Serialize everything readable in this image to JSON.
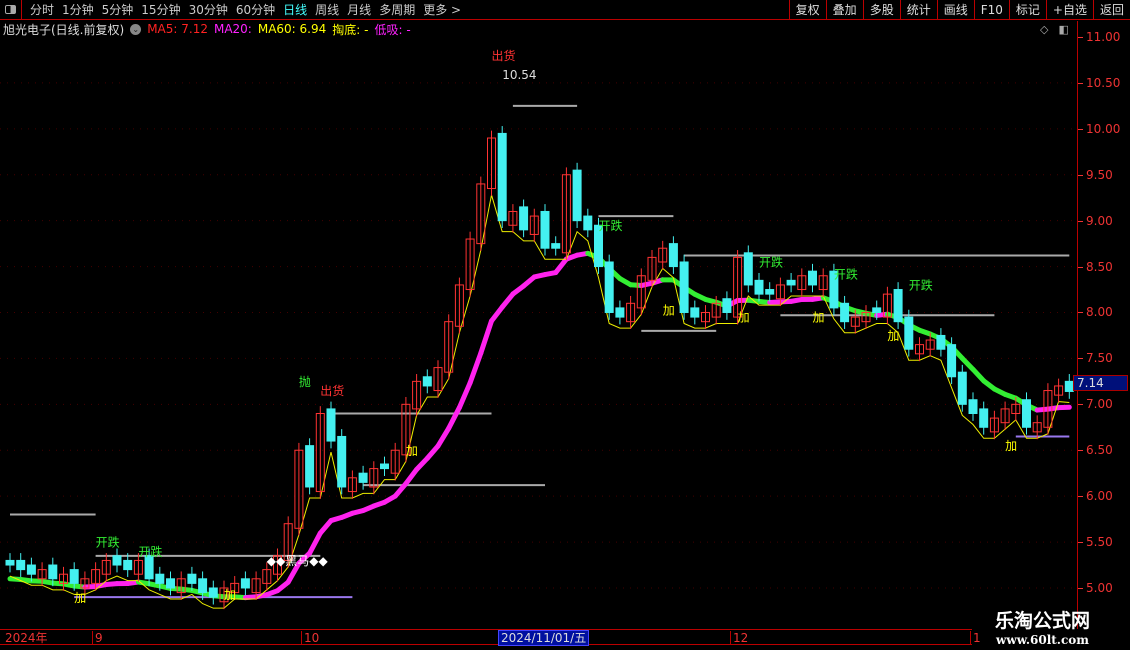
{
  "toolbar": {
    "periods": [
      "分时",
      "1分钟",
      "5分钟",
      "15分钟",
      "30分钟",
      "60分钟",
      "日线",
      "周线",
      "月线",
      "多周期",
      "更多 >"
    ],
    "active": "日线",
    "right_buttons": [
      "复权",
      "叠加",
      "多股",
      "统计",
      "画线",
      "F10",
      "标记",
      "+自选",
      "返回"
    ]
  },
  "info": {
    "title": "旭光电子(日线.前复权)",
    "ma5": "MA5: 7.12",
    "ma20": "MA20:",
    "ma60": "MA60: 6.94",
    "tao": "掏底: -",
    "dixi": "低吸: -"
  },
  "colors": {
    "up": "#ff3333",
    "down": "#44f0f0",
    "ma5": "#ff2020",
    "ma20": "#ff22ff",
    "ma60": "#ffff00",
    "trend_up": "#ff22ee",
    "trend_down": "#33ee33"
  },
  "axis": {
    "ticks": [
      "11.00",
      "10.50",
      "10.00",
      "9.50",
      "9.00",
      "8.50",
      "8.00",
      "7.50",
      "7.00",
      "6.50",
      "6.00",
      "5.50",
      "5.00"
    ],
    "current_price": "7.14"
  },
  "datebar": {
    "labels": [
      "2024年",
      "9",
      "10",
      "12",
      "1"
    ],
    "current": "2024/11/01/五"
  },
  "watermark": {
    "name": "乐淘公式网",
    "url": "www.60lt.com"
  },
  "chart_data": {
    "type": "candlestick",
    "ylim": [
      4.7,
      11.0
    ],
    "closes": [
      5.25,
      5.2,
      5.15,
      5.2,
      5.1,
      5.15,
      5.05,
      5.1,
      5.2,
      5.3,
      5.25,
      5.2,
      5.3,
      5.1,
      5.05,
      5.0,
      5.1,
      5.05,
      4.95,
      4.9,
      5.0,
      5.05,
      5.0,
      5.1,
      5.2,
      5.35,
      5.7,
      6.5,
      6.1,
      6.9,
      6.6,
      6.1,
      6.2,
      6.15,
      6.3,
      6.3,
      6.5,
      7.0,
      7.25,
      7.2,
      7.4,
      7.9,
      8.3,
      8.8,
      9.4,
      9.9,
      9.0,
      9.1,
      8.9,
      9.05,
      8.7,
      8.7,
      9.5,
      9.0,
      8.9,
      8.5,
      8.0,
      7.95,
      8.1,
      8.4,
      8.6,
      8.7,
      8.5,
      8.0,
      7.95,
      8.0,
      8.1,
      8.0,
      8.6,
      8.3,
      8.2,
      8.2,
      8.3,
      8.3,
      8.4,
      8.3,
      8.4,
      8.05,
      7.9,
      7.95,
      8.0,
      8.0,
      8.2,
      7.9,
      7.6,
      7.65,
      7.7,
      7.6,
      7.3,
      7.0,
      6.9,
      6.75,
      6.85,
      6.95,
      7.0,
      6.75,
      6.8,
      7.15,
      7.2,
      7.14
    ],
    "annotations": [
      {
        "text": "出货",
        "index": 45,
        "price": 10.75,
        "color": "#ff3333"
      },
      {
        "text": "10.54",
        "index": 46,
        "price": 10.54,
        "color": "#dddddd"
      },
      {
        "text": "抛",
        "index": 27,
        "price": 7.2,
        "color": "#33ee33"
      },
      {
        "text": "出货",
        "index": 29,
        "price": 7.1,
        "color": "#ff3333"
      },
      {
        "text": "开跌",
        "index": 55,
        "price": 8.9,
        "color": "#33ee33"
      },
      {
        "text": "开跌",
        "index": 70,
        "price": 8.5,
        "color": "#33ee33"
      },
      {
        "text": "开跌",
        "index": 77,
        "price": 8.37,
        "color": "#33ee33"
      },
      {
        "text": "开跌",
        "index": 84,
        "price": 8.25,
        "color": "#33ee33"
      },
      {
        "text": "开跌",
        "index": 8,
        "price": 5.45,
        "color": "#33ee33"
      },
      {
        "text": "开跌",
        "index": 12,
        "price": 5.35,
        "color": "#33ee33"
      },
      {
        "text": "加",
        "index": 37,
        "price": 6.45,
        "color": "#ffff00"
      },
      {
        "text": "加",
        "index": 61,
        "price": 7.98,
        "color": "#ffff00"
      },
      {
        "text": "加",
        "index": 68,
        "price": 7.9,
        "color": "#ffff00"
      },
      {
        "text": "加",
        "index": 75,
        "price": 7.9,
        "color": "#ffff00"
      },
      {
        "text": "加",
        "index": 82,
        "price": 7.7,
        "color": "#ffff00"
      },
      {
        "text": "加",
        "index": 93,
        "price": 6.5,
        "color": "#ffff00"
      },
      {
        "text": "加",
        "index": 6,
        "price": 4.85,
        "color": "#ffff00"
      },
      {
        "text": "加",
        "index": 20,
        "price": 4.88,
        "color": "#ffff00"
      },
      {
        "text": "◆◆黑马◆◆",
        "index": 24,
        "price": 5.25,
        "color": "#ffffff"
      }
    ],
    "levels": [
      {
        "price": 10.25,
        "from": 47,
        "to": 53,
        "color": "#aaaaaa"
      },
      {
        "price": 6.9,
        "from": 30,
        "to": 45,
        "color": "#aaaaaa"
      },
      {
        "price": 6.12,
        "from": 33,
        "to": 50,
        "color": "#aaaaaa"
      },
      {
        "price": 9.05,
        "from": 55,
        "to": 62,
        "color": "#aaaaaa"
      },
      {
        "price": 8.62,
        "from": 63,
        "to": 99,
        "color": "#aaaaaa"
      },
      {
        "price": 7.97,
        "from": 72,
        "to": 92,
        "color": "#aaaaaa"
      },
      {
        "price": 7.8,
        "from": 59,
        "to": 66,
        "color": "#aaaaaa"
      },
      {
        "price": 5.8,
        "from": 0,
        "to": 8,
        "color": "#aaaaaa"
      },
      {
        "price": 5.35,
        "from": 8,
        "to": 29,
        "color": "#aaaaaa"
      },
      {
        "price": 4.9,
        "from": 6,
        "to": 32,
        "color": "#9977ee"
      },
      {
        "price": 6.65,
        "from": 94,
        "to": 99,
        "color": "#9977ee"
      }
    ]
  }
}
